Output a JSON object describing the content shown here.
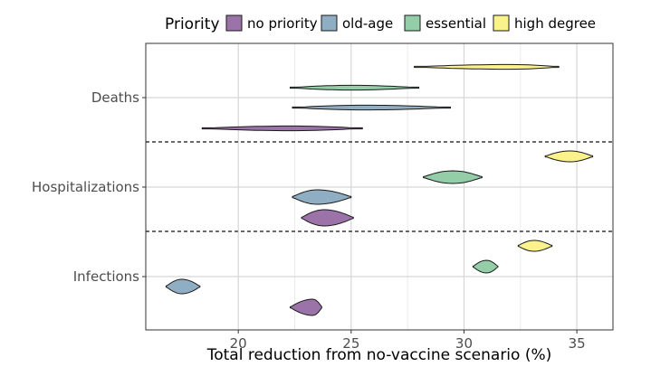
{
  "chart_data": {
    "type": "violin",
    "xlabel": "Total reduction from no-vaccine scenario (%)",
    "ylabel": "",
    "xlim": [
      15.9,
      36.6
    ],
    "x_ticks": [
      20,
      25,
      30,
      35
    ],
    "categories": [
      "Infections",
      "Hospitalizations",
      "Deaths"
    ],
    "grid": true,
    "legend": {
      "title": "Priority",
      "placement": "top",
      "entries": [
        {
          "name": "no priority",
          "color": "#9b73a8"
        },
        {
          "name": "old-age",
          "color": "#8faec3"
        },
        {
          "name": "essential",
          "color": "#93cea8"
        },
        {
          "name": "high degree",
          "color": "#fbf28b"
        }
      ]
    },
    "series": [
      {
        "name": "no priority",
        "color": "#9b73a8",
        "violins": [
          {
            "category": "Infections",
            "min": 22.3,
            "max": 23.7,
            "median": 23.3
          },
          {
            "category": "Hospitalizations",
            "min": 22.8,
            "max": 25.1,
            "median": 23.8
          },
          {
            "category": "Deaths",
            "min": 18.4,
            "max": 25.5,
            "median": 22.3
          }
        ]
      },
      {
        "name": "old-age",
        "color": "#8faec3",
        "violins": [
          {
            "category": "Infections",
            "min": 16.8,
            "max": 18.3,
            "median": 17.5
          },
          {
            "category": "Hospitalizations",
            "min": 22.4,
            "max": 25.0,
            "median": 23.5
          },
          {
            "category": "Deaths",
            "min": 22.4,
            "max": 29.4,
            "median": 25.7
          }
        ]
      },
      {
        "name": "essential",
        "color": "#93cea8",
        "violins": [
          {
            "category": "Infections",
            "min": 30.4,
            "max": 31.5,
            "median": 31.0
          },
          {
            "category": "Hospitalizations",
            "min": 28.2,
            "max": 30.8,
            "median": 29.5
          },
          {
            "category": "Deaths",
            "min": 22.3,
            "max": 28.0,
            "median": 25.0
          }
        ]
      },
      {
        "name": "high degree",
        "color": "#fbf28b",
        "violins": [
          {
            "category": "Infections",
            "min": 32.4,
            "max": 33.9,
            "median": 33.1
          },
          {
            "category": "Hospitalizations",
            "min": 33.6,
            "max": 35.7,
            "median": 34.7
          },
          {
            "category": "Deaths",
            "min": 27.8,
            "max": 34.2,
            "median": 32.0
          }
        ]
      }
    ]
  }
}
